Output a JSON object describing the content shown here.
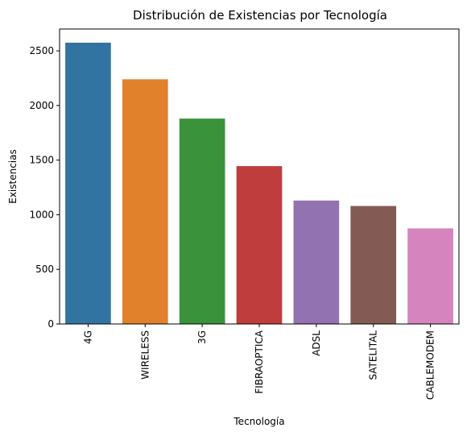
{
  "chart_data": {
    "type": "bar",
    "title": "Distribución de Existencias por Tecnología",
    "xlabel": "Tecnología",
    "ylabel": "Existencias",
    "categories": [
      "4G",
      "WIRELESS",
      "3G",
      "FIBRAOPTICA",
      "ADSL",
      "SATELITAL",
      "CABLEMODEM"
    ],
    "values": [
      2575,
      2240,
      1880,
      1445,
      1130,
      1080,
      875
    ],
    "colors": [
      "#3274a1",
      "#e1812c",
      "#3a923a",
      "#c03d3e",
      "#9372b2",
      "#845b53",
      "#d684bd"
    ],
    "ylim": [
      0,
      2700
    ],
    "yticks": [
      0,
      500,
      1000,
      1500,
      2000,
      2500
    ],
    "grid": false,
    "legend": "none"
  }
}
